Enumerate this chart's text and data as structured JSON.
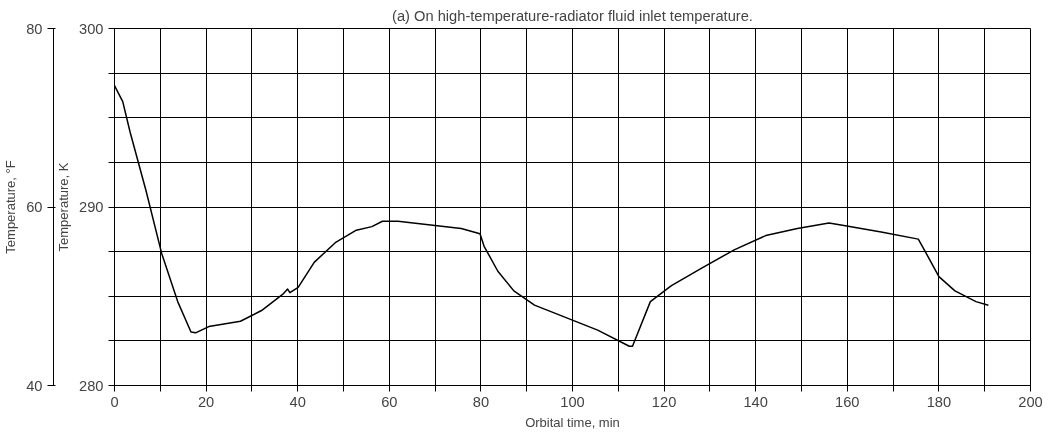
{
  "chart_data": {
    "type": "line",
    "title": "(a) On high-temperature-radiator fluid inlet temperature.",
    "xlabel": "Orbital time, min",
    "ylabel": "Temperature, K",
    "y2label": "Temperature, °F",
    "x": [
      0,
      1.8,
      3.4,
      6.9,
      10.3,
      13.8,
      16.7,
      17.7,
      20.6,
      27.5,
      32.1,
      36.7,
      37.8,
      38.3,
      40.1,
      43.6,
      48.2,
      52.8,
      56.2,
      58.5,
      61.9,
      75.7,
      79.8,
      80.7,
      83.7,
      87.2,
      91.7,
      98.6,
      105.5,
      112.4,
      113.1,
      117.0,
      121.6,
      128.4,
      135.3,
      142.2,
      149.1,
      156.0,
      158.3,
      167.4,
      175.5,
      176.6,
      180.0,
      183.5,
      188.1,
      190.8
    ],
    "series": [
      {
        "color": "#000000",
        "values": [
          296.8,
          295.9,
          294.2,
          290.9,
          287.4,
          284.7,
          283.0,
          282.95,
          283.3,
          283.6,
          284.2,
          285.1,
          285.4,
          285.2,
          285.5,
          286.9,
          288.0,
          288.7,
          288.9,
          289.2,
          289.2,
          288.8,
          288.5,
          287.8,
          286.4,
          285.3,
          284.5,
          283.8,
          283.1,
          282.2,
          282.2,
          284.7,
          285.6,
          286.6,
          287.6,
          288.4,
          288.8,
          289.1,
          289.0,
          288.6,
          288.2,
          287.7,
          286.1,
          285.3,
          284.7,
          284.5
        ]
      }
    ],
    "xlim": [
      0,
      200
    ],
    "ylim": [
      280,
      300
    ],
    "xticks": [
      0,
      {
        "value": 10,
        "label": null
      },
      20,
      {
        "value": 30,
        "label": null
      },
      40,
      {
        "value": 50,
        "label": null
      },
      60,
      {
        "value": 70,
        "label": null
      },
      80,
      {
        "value": 90,
        "label": null
      },
      100,
      {
        "value": 110,
        "label": null
      },
      120,
      {
        "value": 130,
        "label": null
      },
      140,
      {
        "value": 150,
        "label": null
      },
      160,
      {
        "value": 170,
        "label": null
      },
      180,
      {
        "value": 190,
        "label": null
      },
      200
    ],
    "yticks": [
      280,
      {
        "value": 282.5,
        "label": null
      },
      {
        "value": 285,
        "label": null
      },
      {
        "value": 287.5,
        "label": null
      },
      290,
      {
        "value": 292.5,
        "label": null
      },
      {
        "value": 295,
        "label": null
      },
      {
        "value": 297.5,
        "label": null
      },
      300
    ],
    "y2lim": [
      40,
      80
    ],
    "y2ticks": [
      40,
      60,
      80
    ],
    "grid": true,
    "marker": "none",
    "line_style": "solid"
  }
}
